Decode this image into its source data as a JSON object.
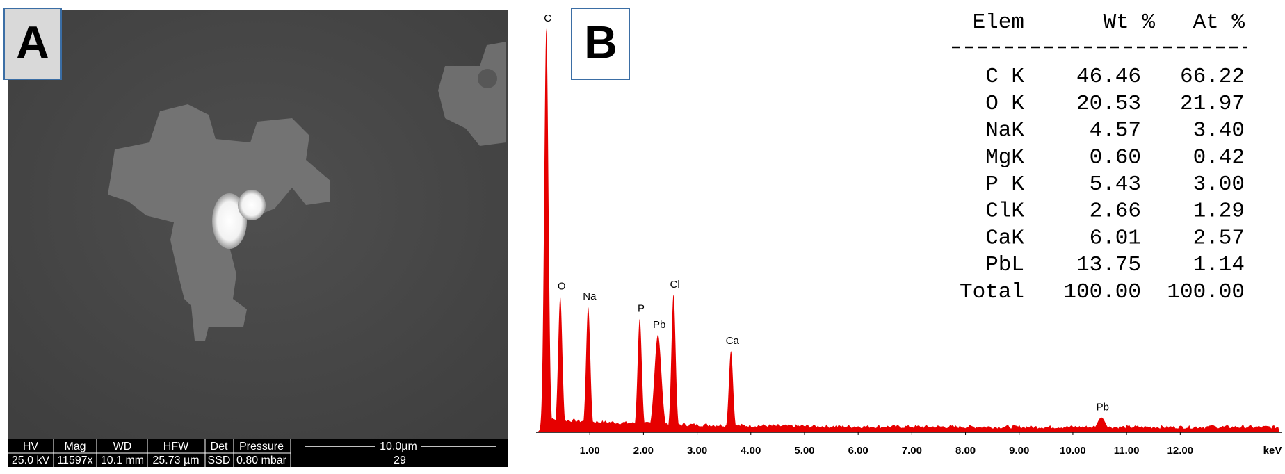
{
  "panel_a": {
    "label": "A",
    "info_bar": {
      "headers": [
        "HV",
        "Mag",
        "WD",
        "HFW",
        "Det",
        "Pressure"
      ],
      "values": [
        "25.0 kV",
        "11597x",
        "10.1 mm",
        "25.73 µm",
        "SSD",
        "0.80  mbar"
      ],
      "scale_bar": "10.0µm",
      "image_number": "29"
    }
  },
  "panel_b": {
    "label": "B",
    "spectrum": {
      "type": "line",
      "x_unit": "keV",
      "color": "#e60000",
      "xlim": [
        0,
        13.9
      ],
      "xticks": [
        {
          "value": 1,
          "label": "1.00"
        },
        {
          "value": 2,
          "label": "2.00"
        },
        {
          "value": 3,
          "label": "3.00"
        },
        {
          "value": 4,
          "label": "4.00"
        },
        {
          "value": 5,
          "label": "5.00"
        },
        {
          "value": 6,
          "label": "6.00"
        },
        {
          "value": 7,
          "label": "7.00"
        },
        {
          "value": 8,
          "label": "8.00"
        },
        {
          "value": 9,
          "label": "9.00"
        },
        {
          "value": 10,
          "label": "10.00"
        },
        {
          "value": 11,
          "label": "11.00"
        },
        {
          "value": 12,
          "label": "12.00"
        }
      ],
      "peaks": [
        {
          "label": "C",
          "energy": 0.19,
          "height": 100
        },
        {
          "label": "O",
          "energy": 0.45,
          "height": 33.5
        },
        {
          "label": "Na",
          "energy": 0.97,
          "height": 31
        },
        {
          "label": "P",
          "energy": 1.93,
          "height": 28
        },
        {
          "label": "Pb",
          "energy": 2.27,
          "height": 24
        },
        {
          "label": "Cl",
          "energy": 2.56,
          "height": 34
        },
        {
          "label": "Ca",
          "energy": 3.63,
          "height": 20
        },
        {
          "label": "Pb",
          "energy": 10.53,
          "height": 3.5
        },
        {
          "label": null,
          "energy": 12.6,
          "height": 1.6
        }
      ]
    },
    "table": {
      "header": [
        "Elem",
        "Wt %",
        "At %"
      ],
      "rows": [
        [
          "C K",
          "46.46",
          "66.22"
        ],
        [
          "O K",
          "20.53",
          "21.97"
        ],
        [
          "NaK",
          "4.57",
          "3.40"
        ],
        [
          "MgK",
          "0.60",
          "0.42"
        ],
        [
          "P K",
          "5.43",
          "3.00"
        ],
        [
          "ClK",
          "2.66",
          "1.29"
        ],
        [
          "CaK",
          "6.01",
          "2.57"
        ],
        [
          "PbL",
          "13.75",
          "1.14"
        ],
        [
          "Total",
          "100.00",
          "100.00"
        ]
      ]
    }
  }
}
